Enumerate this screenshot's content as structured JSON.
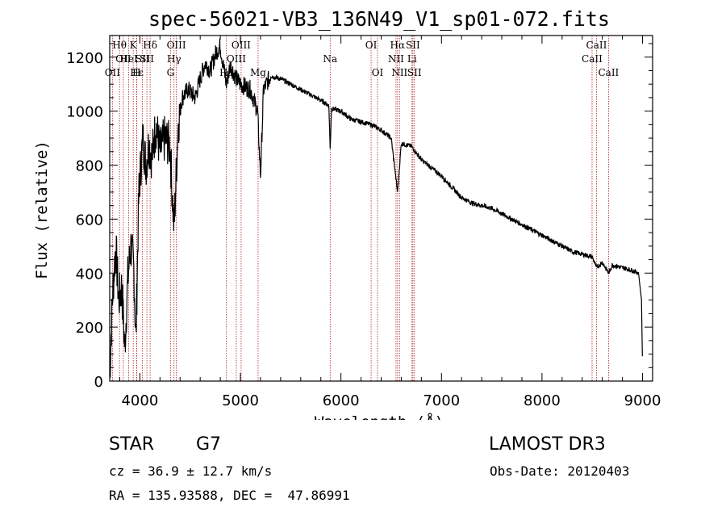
{
  "chart_data": {
    "type": "line",
    "title": "spec-56021-VB3_136N49_V1_sp01-072.fits",
    "xlabel": "Wavelength (Å)",
    "ylabel": "Flux (relative)",
    "xlim": [
      3700,
      9100
    ],
    "ylim": [
      0,
      1280
    ],
    "xticks": [
      4000,
      5000,
      6000,
      7000,
      8000,
      9000
    ],
    "yticks": [
      0,
      200,
      400,
      600,
      800,
      1000,
      1200
    ],
    "spectrum_points": [
      [
        3700,
        20
      ],
      [
        3730,
        330
      ],
      [
        3760,
        500
      ],
      [
        3790,
        300
      ],
      [
        3820,
        350
      ],
      [
        3850,
        120
      ],
      [
        3880,
        380
      ],
      [
        3910,
        500
      ],
      [
        3940,
        420
      ],
      [
        3960,
        150
      ],
      [
        3990,
        700
      ],
      [
        4030,
        900
      ],
      [
        4060,
        800
      ],
      [
        4090,
        880
      ],
      [
        4120,
        830
      ],
      [
        4160,
        950
      ],
      [
        4200,
        850
      ],
      [
        4250,
        900
      ],
      [
        4300,
        870
      ],
      [
        4340,
        560
      ],
      [
        4380,
        950
      ],
      [
        4420,
        1050
      ],
      [
        4480,
        1080
      ],
      [
        4550,
        1050
      ],
      [
        4600,
        1120
      ],
      [
        4650,
        1180
      ],
      [
        4700,
        1150
      ],
      [
        4760,
        1220
      ],
      [
        4800,
        1240
      ],
      [
        4860,
        1100
      ],
      [
        4900,
        1170
      ],
      [
        4960,
        1120
      ],
      [
        5000,
        1100
      ],
      [
        5100,
        1080
      ],
      [
        5170,
        1000
      ],
      [
        5200,
        760
      ],
      [
        5230,
        1080
      ],
      [
        5300,
        1130
      ],
      [
        5400,
        1120
      ],
      [
        5500,
        1100
      ],
      [
        5600,
        1080
      ],
      [
        5700,
        1060
      ],
      [
        5800,
        1040
      ],
      [
        5880,
        1020
      ],
      [
        5893,
        860
      ],
      [
        5906,
        1010
      ],
      [
        6000,
        1000
      ],
      [
        6100,
        970
      ],
      [
        6200,
        960
      ],
      [
        6300,
        950
      ],
      [
        6400,
        930
      ],
      [
        6500,
        900
      ],
      [
        6563,
        700
      ],
      [
        6600,
        880
      ],
      [
        6700,
        870
      ],
      [
        6800,
        820
      ],
      [
        6900,
        790
      ],
      [
        7000,
        760
      ],
      [
        7100,
        720
      ],
      [
        7200,
        680
      ],
      [
        7300,
        660
      ],
      [
        7400,
        650
      ],
      [
        7500,
        640
      ],
      [
        7600,
        620
      ],
      [
        7700,
        600
      ],
      [
        7800,
        580
      ],
      [
        7900,
        560
      ],
      [
        8000,
        540
      ],
      [
        8100,
        520
      ],
      [
        8200,
        500
      ],
      [
        8300,
        480
      ],
      [
        8400,
        470
      ],
      [
        8500,
        460
      ],
      [
        8542,
        420
      ],
      [
        8600,
        440
      ],
      [
        8662,
        400
      ],
      [
        8700,
        430
      ],
      [
        8800,
        420
      ],
      [
        8900,
        410
      ],
      [
        8960,
        400
      ],
      [
        8990,
        300
      ],
      [
        9000,
        40
      ]
    ],
    "lines": [
      {
        "wave": 3797,
        "label": "Hθ",
        "row": 0
      },
      {
        "wave": 3835,
        "label": "OII",
        "row": 1
      },
      {
        "wave": 3727,
        "label": "OII",
        "row": 2
      },
      {
        "wave": 3889,
        "label": "HeI",
        "row": 1
      },
      {
        "wave": 3934,
        "label": "K",
        "row": 0
      },
      {
        "wave": 3970,
        "label": "Hε",
        "row": 2
      },
      {
        "wave": 3968,
        "label": "H",
        "row": 2
      },
      {
        "wave": 4026,
        "label": "SII",
        "row": 1
      },
      {
        "wave": 4102,
        "label": "Hδ",
        "row": 0
      },
      {
        "wave": 4070,
        "label": "SII",
        "row": 1
      },
      {
        "wave": 4340,
        "label": "Hγ",
        "row": 1
      },
      {
        "wave": 4305,
        "label": "G",
        "row": 2
      },
      {
        "wave": 4363,
        "label": "OIII",
        "row": 0
      },
      {
        "wave": 4861,
        "label": "Hβ",
        "row": 2
      },
      {
        "wave": 4959,
        "label": "OIII",
        "row": 1
      },
      {
        "wave": 5007,
        "label": "OIII",
        "row": 0
      },
      {
        "wave": 5176,
        "label": "Mg",
        "row": 2
      },
      {
        "wave": 5893,
        "label": "Na",
        "row": 1
      },
      {
        "wave": 6300,
        "label": "OI",
        "row": 0
      },
      {
        "wave": 6364,
        "label": "OI",
        "row": 2
      },
      {
        "wave": 6548,
        "label": "NII",
        "row": 1
      },
      {
        "wave": 6563,
        "label": "Hα",
        "row": 0
      },
      {
        "wave": 6583,
        "label": "NII",
        "row": 2
      },
      {
        "wave": 6707,
        "label": "Li",
        "row": 1
      },
      {
        "wave": 6716,
        "label": "SII",
        "row": 0
      },
      {
        "wave": 6731,
        "label": "SII",
        "row": 2
      },
      {
        "wave": 8498,
        "label": "CaII",
        "row": 1
      },
      {
        "wave": 8542,
        "label": "CaII",
        "row": 0
      },
      {
        "wave": 8662,
        "label": "CaII",
        "row": 2
      }
    ]
  },
  "info": {
    "object_class": "STAR",
    "subclass": "G7",
    "survey": "LAMOST DR3",
    "cz": "cz = 36.9 ± 12.7 km/s",
    "obs_date": "Obs-Date: 20120403",
    "radec": "RA = 135.93588, DEC =  47.86991"
  },
  "colors": {
    "spectrum": "#000000",
    "line_markers": "#b22222"
  }
}
